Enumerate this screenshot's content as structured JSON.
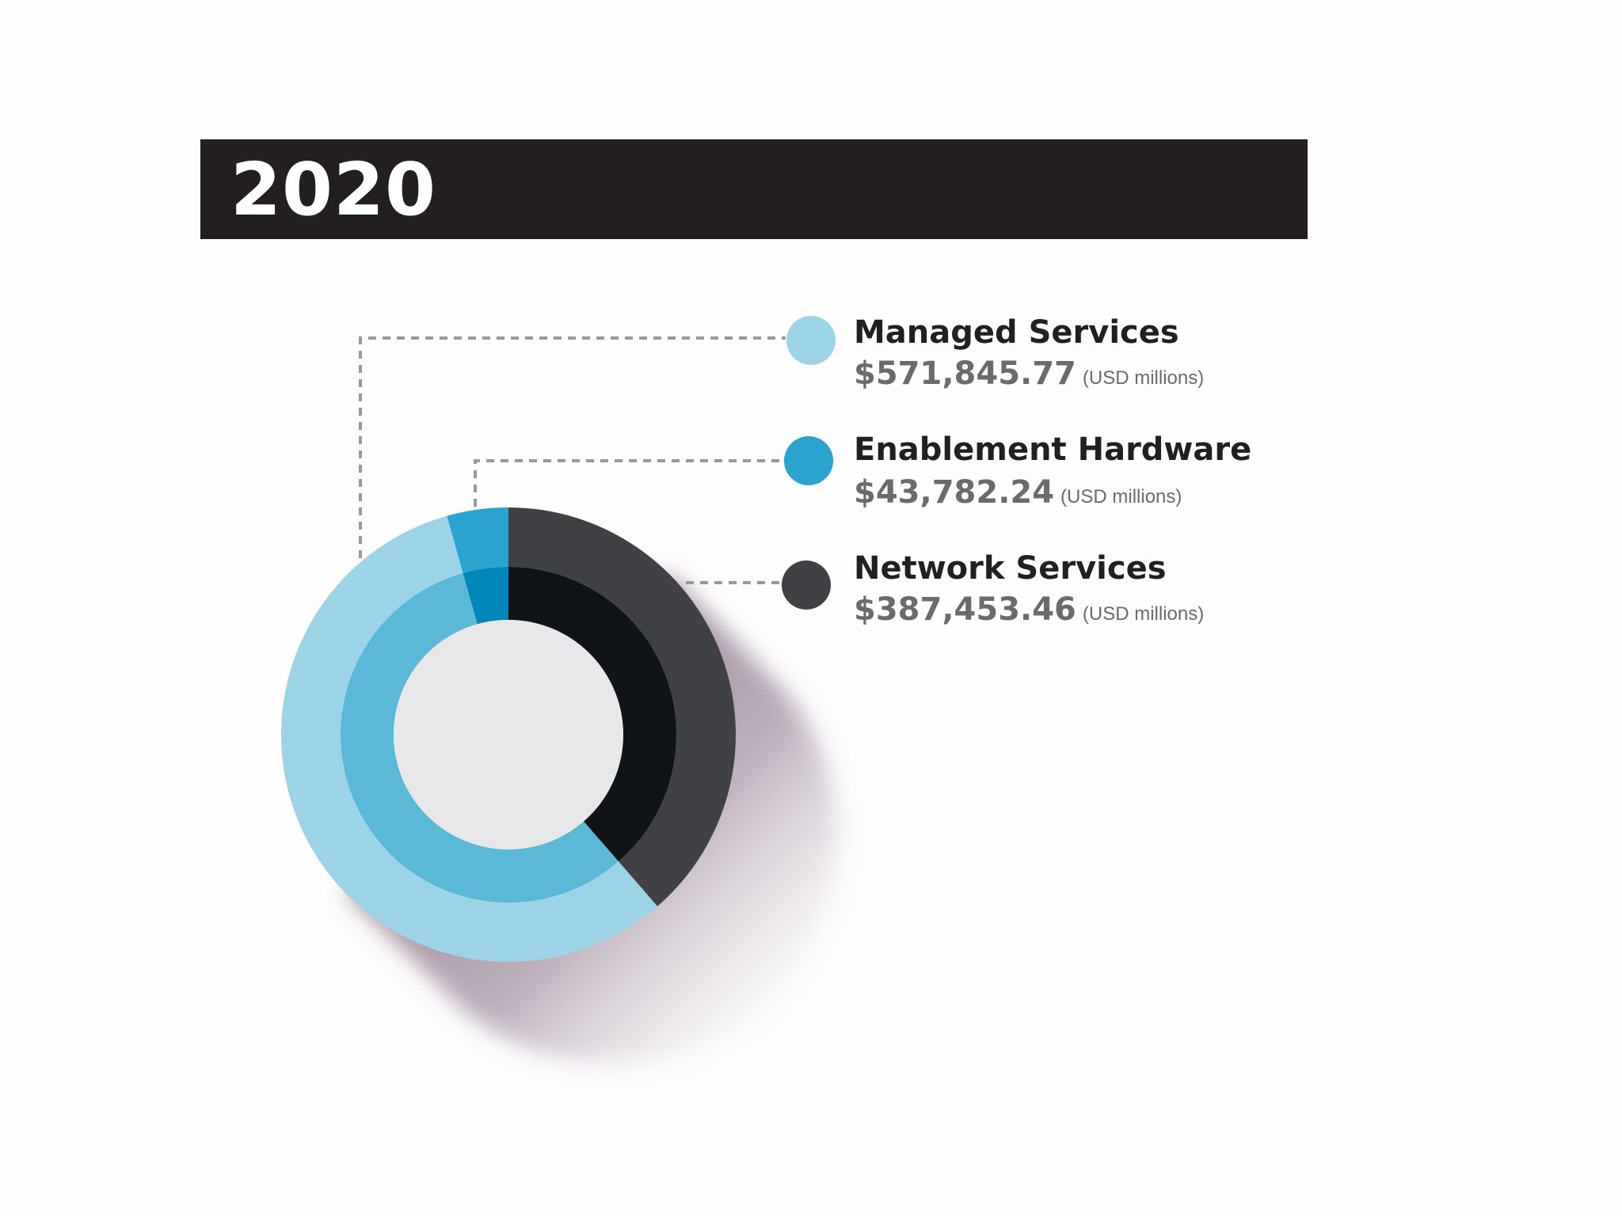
{
  "header": {
    "title": "2020"
  },
  "chart_data": {
    "type": "pie",
    "style": "donut",
    "title": "2020",
    "series": [
      {
        "name": "Managed Services",
        "value": 571845.77,
        "display_value": "$571,845.77",
        "unit": "(USD millions)",
        "color_outer": "#9dd3e7",
        "color_inner": "#5bb8d6",
        "marker_color": "#9dd3e7"
      },
      {
        "name": "Enablement Hardware",
        "value": 43782.24,
        "display_value": "$43,782.24",
        "unit": "(USD millions)",
        "color_outer": "#2aa3cf",
        "color_inner": "#0086b8",
        "marker_color": "#2aa3cf"
      },
      {
        "name": "Network Services",
        "value": 387453.46,
        "display_value": "$387,453.46",
        "unit": "(USD millions)",
        "color_outer": "#3f4144",
        "color_inner": "#111416",
        "marker_color": "#3f4144"
      }
    ],
    "legend_position": "right",
    "center_color": "#e8e8ea",
    "leader_line_color": "#999999"
  }
}
